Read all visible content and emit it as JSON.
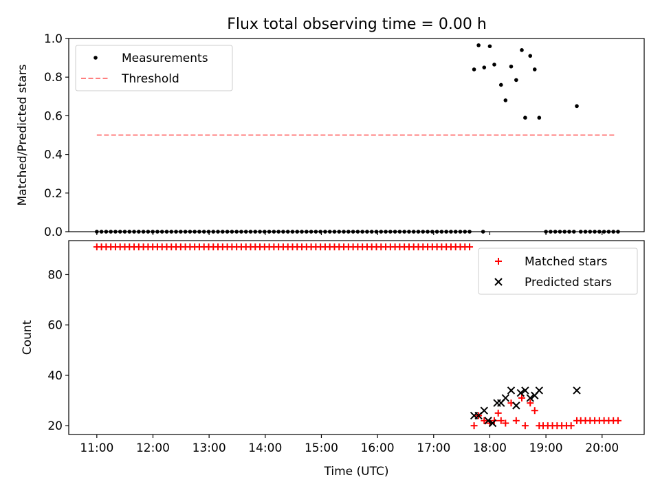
{
  "figure": {
    "title": "Flux total observing time = 0.00 h"
  },
  "chart_data": [
    {
      "type": "scatter",
      "panel": "top",
      "ylabel": "Matched/Predicted stars",
      "xlabel": "",
      "xlim": [
        10.5,
        20.75
      ],
      "ylim": [
        0,
        1.0
      ],
      "yticks": [
        0.0,
        0.2,
        0.4,
        0.6,
        0.8,
        1.0
      ],
      "ytick_labels": [
        "0.0",
        "0.2",
        "0.4",
        "0.6",
        "0.8",
        "1.0"
      ],
      "xticks": [
        11,
        12,
        13,
        14,
        15,
        16,
        17,
        18,
        19,
        20
      ],
      "grid": false,
      "legend_position": "top-left",
      "series": [
        {
          "name": "Measurements",
          "kind": "scatter",
          "color": "#000000",
          "points": [
            [
              17.72,
              0.84
            ],
            [
              17.8,
              0.965
            ],
            [
              17.9,
              0.85
            ],
            [
              18.0,
              0.96
            ],
            [
              18.08,
              0.865
            ],
            [
              18.2,
              0.76
            ],
            [
              18.28,
              0.68
            ],
            [
              18.38,
              0.855
            ],
            [
              18.47,
              0.785
            ],
            [
              18.57,
              0.94
            ],
            [
              18.63,
              0.59
            ],
            [
              18.72,
              0.91
            ],
            [
              18.8,
              0.84
            ],
            [
              18.88,
              0.59
            ],
            [
              19.55,
              0.65
            ]
          ],
          "zero_runs": [
            {
              "start": 11.0,
              "end": 17.65,
              "step": 0.083,
              "value": 0.0
            },
            {
              "start": 17.88,
              "end": 17.88,
              "step": 0.083,
              "value": 0.0
            },
            {
              "start": 19.0,
              "end": 19.5,
              "step": 0.083,
              "value": 0.0
            },
            {
              "start": 19.62,
              "end": 20.3,
              "step": 0.083,
              "value": 0.0
            }
          ]
        },
        {
          "name": "Threshold",
          "kind": "line",
          "color": "#ff7f7f",
          "dash": "dashed",
          "x": [
            11.0,
            20.25
          ],
          "y": [
            0.5,
            0.5
          ]
        }
      ]
    },
    {
      "type": "scatter",
      "panel": "bottom",
      "ylabel": "Count",
      "xlabel": "Time (UTC)",
      "xlim": [
        10.5,
        20.75
      ],
      "ylim": [
        16.5,
        93.5
      ],
      "yticks": [
        20,
        40,
        60,
        80
      ],
      "ytick_labels": [
        "20",
        "40",
        "60",
        "80"
      ],
      "xticks": [
        11,
        12,
        13,
        14,
        15,
        16,
        17,
        18,
        19,
        20
      ],
      "xtick_labels": [
        "11:00",
        "12:00",
        "13:00",
        "14:00",
        "15:00",
        "16:00",
        "17:00",
        "18:00",
        "19:00",
        "20:00"
      ],
      "grid": false,
      "legend_position": "top-right",
      "series": [
        {
          "name": "Matched stars",
          "kind": "plus",
          "color": "#ff0000",
          "points": [
            [
              17.72,
              20
            ],
            [
              17.8,
              24
            ],
            [
              17.9,
              22
            ],
            [
              18.0,
              21
            ],
            [
              18.08,
              22
            ],
            [
              18.15,
              25
            ],
            [
              18.2,
              22
            ],
            [
              18.28,
              21
            ],
            [
              18.38,
              29
            ],
            [
              18.47,
              22
            ],
            [
              18.57,
              31
            ],
            [
              18.63,
              20
            ],
            [
              18.72,
              29
            ],
            [
              18.8,
              26
            ],
            [
              18.88,
              20
            ],
            [
              19.55,
              22
            ]
          ],
          "runs": [
            {
              "start": 11.0,
              "end": 17.65,
              "step": 0.083,
              "value": 91
            },
            {
              "start": 18.95,
              "end": 19.45,
              "step": 0.083,
              "value": 20
            },
            {
              "start": 19.62,
              "end": 20.3,
              "step": 0.083,
              "value": 22
            }
          ]
        },
        {
          "name": "Predicted stars",
          "kind": "x",
          "color": "#000000",
          "points": [
            [
              17.72,
              24
            ],
            [
              17.8,
              24
            ],
            [
              17.9,
              26
            ],
            [
              17.97,
              22
            ],
            [
              18.05,
              21
            ],
            [
              18.13,
              29
            ],
            [
              18.2,
              29
            ],
            [
              18.28,
              31
            ],
            [
              18.38,
              34
            ],
            [
              18.47,
              28
            ],
            [
              18.55,
              33
            ],
            [
              18.63,
              34
            ],
            [
              18.72,
              31
            ],
            [
              18.8,
              32
            ],
            [
              18.88,
              34
            ],
            [
              19.55,
              34
            ]
          ]
        }
      ]
    }
  ]
}
